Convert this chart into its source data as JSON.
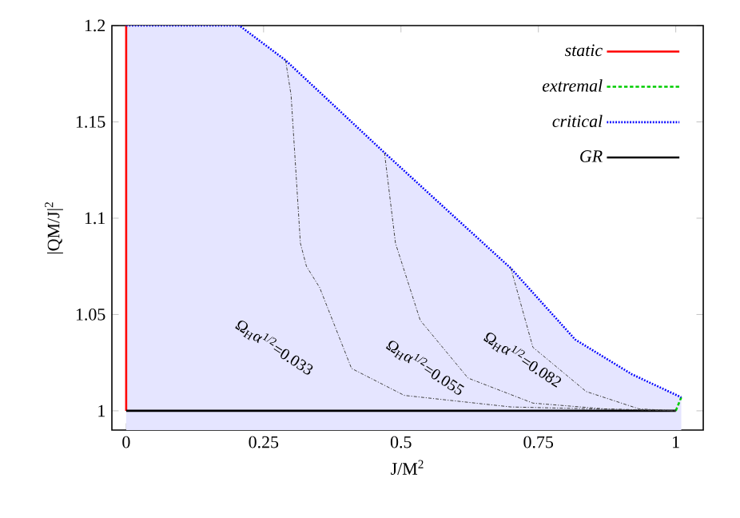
{
  "chart_data": {
    "type": "line",
    "xlabel": "J/M$^{2}$",
    "ylabel": "|QM/J|$^{2}$",
    "xlim": [
      -0.026,
      1.05
    ],
    "ylim": [
      0.99,
      1.2
    ],
    "xticks": [
      0,
      0.25,
      0.5,
      0.75,
      1
    ],
    "yticks": [
      1,
      1.05,
      1.1,
      1.15,
      1.2
    ],
    "legend": "top right",
    "series": [
      {
        "name": "static",
        "color": "#ff0000",
        "line_style": "solid",
        "x": [
          0,
          0
        ],
        "values": [
          1,
          1.2
        ]
      },
      {
        "name": "extremal",
        "color": "#00cc00",
        "line_style": "dashed",
        "x": [
          1,
          1.01
        ],
        "values": [
          1,
          1.007
        ]
      },
      {
        "type": "area",
        "name": "critical",
        "color": "#0000ff",
        "line_style": "dotted",
        "x": [
          0,
          0.206,
          0.29,
          0.38,
          0.47,
          0.6,
          0.7,
          0.817,
          0.92,
          1.01
        ],
        "values": [
          1.2,
          1.2,
          1.182,
          1.158,
          1.134,
          1.1,
          1.074,
          1.037,
          1.019,
          1.007
        ]
      },
      {
        "name": "GR",
        "color": "#000000",
        "line_style": "solid",
        "x": [
          0,
          1
        ],
        "values": [
          1,
          1
        ]
      },
      {
        "color": "#404040",
        "line_style": "dashed",
        "x": [
          0.29,
          0.3,
          0.317,
          0.328,
          0.352,
          0.41,
          0.506,
          0.7,
          1
        ],
        "values": [
          1.182,
          1.164,
          1.087,
          1.075,
          1.064,
          1.022,
          1.008,
          1.002,
          1
        ]
      },
      {
        "color": "#404040",
        "line_style": "dashed",
        "x": [
          0.47,
          0.49,
          0.535,
          0.622,
          0.74,
          0.87,
          1
        ],
        "values": [
          1.134,
          1.087,
          1.047,
          1.017,
          1.004,
          1.001,
          1
        ]
      },
      {
        "color": "#404040",
        "line_style": "dashed",
        "x": [
          0.7,
          0.74,
          0.837,
          0.933,
          1
        ],
        "values": [
          1.074,
          1.033,
          1.01,
          1.001,
          1
        ]
      }
    ],
    "annotations": [
      "Ω$_{H}$α$^{1/2}$=0.033",
      "Ω$_{H}$α$^{1/2}$=0.055",
      "Ω$_{H}$α$^{1/2}$=0.082"
    ]
  }
}
